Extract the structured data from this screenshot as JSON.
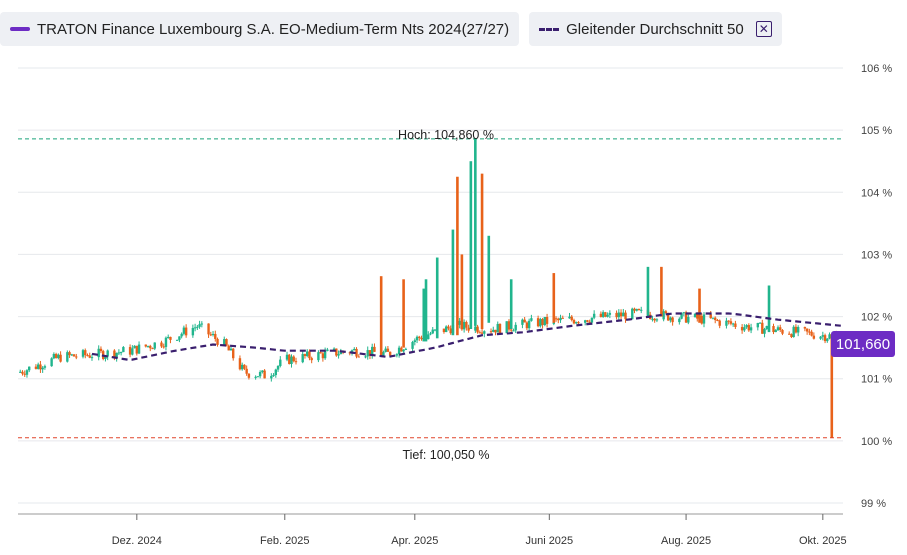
{
  "legend": {
    "series_label": "TRATON Finance Luxembourg S.A. EO-Medium-Term Nts 2024(27/27)",
    "ma_label": "Gleitender Durchschnitt 50",
    "close_glyph": "✕"
  },
  "colors": {
    "up": "#21b58d",
    "down": "#e8621a",
    "ma": "#3a1f6e",
    "accent": "#6d2cc4",
    "high_line": "#1aa37a",
    "low_line": "#e0452b",
    "grid": "#e6e8ec"
  },
  "annotations": {
    "high": "Hoch: 104,860 %",
    "low": "Tief: 100,050 %",
    "last": "101,660"
  },
  "chart_data": {
    "type": "candlestick",
    "title": "",
    "xlabel": "",
    "ylabel": "",
    "y_unit": "%",
    "ylim": [
      99,
      106
    ],
    "y_ticks": [
      {
        "v": 106,
        "label": "106 %"
      },
      {
        "v": 105,
        "label": "105 %"
      },
      {
        "v": 104,
        "label": "104 %"
      },
      {
        "v": 103,
        "label": "103 %"
      },
      {
        "v": 102,
        "label": "102 %"
      },
      {
        "v": 101,
        "label": "101 %"
      },
      {
        "v": 100,
        "label": "100 %"
      },
      {
        "v": 99,
        "label": "99 %"
      }
    ],
    "xlim": [
      "2024-10-06",
      "2025-10-09"
    ],
    "x_ticks": [
      {
        "date": "2024-11-28",
        "label": "Dez. 2024"
      },
      {
        "date": "2025-02-02",
        "label": "Feb. 2025"
      },
      {
        "date": "2025-04-01",
        "label": "Apr. 2025"
      },
      {
        "date": "2025-05-31",
        "label": "Juni 2025"
      },
      {
        "date": "2025-07-31",
        "label": "Aug. 2025"
      },
      {
        "date": "2025-09-30",
        "label": "Okt. 2025"
      }
    ],
    "high": 104.86,
    "low": 100.05,
    "last": 101.66,
    "grid": true,
    "legend_position": "top-left",
    "price_anchors": [
      [
        "2024-10-06",
        101.1
      ],
      [
        "2024-10-25",
        101.35
      ],
      [
        "2024-11-12",
        101.4
      ],
      [
        "2024-11-25",
        101.45
      ],
      [
        "2024-12-10",
        101.6
      ],
      [
        "2024-12-25",
        101.85
      ],
      [
        "2025-01-06",
        101.55
      ],
      [
        "2025-01-15",
        101.1
      ],
      [
        "2025-01-25",
        101.05
      ],
      [
        "2025-02-02",
        101.3
      ],
      [
        "2025-02-20",
        101.4
      ],
      [
        "2025-03-05",
        101.45
      ],
      [
        "2025-03-20",
        101.4
      ],
      [
        "2025-04-05",
        101.7
      ],
      [
        "2025-04-20",
        101.85
      ],
      [
        "2025-05-05",
        101.8
      ],
      [
        "2025-05-25",
        101.9
      ],
      [
        "2025-06-10",
        101.95
      ],
      [
        "2025-06-25",
        102.0
      ],
      [
        "2025-07-10",
        102.05
      ],
      [
        "2025-07-25",
        102.0
      ],
      [
        "2025-08-10",
        101.95
      ],
      [
        "2025-08-25",
        101.85
      ],
      [
        "2025-09-10",
        101.78
      ],
      [
        "2025-09-25",
        101.72
      ],
      [
        "2025-10-09",
        101.66
      ]
    ],
    "spikes": [
      {
        "date": "2025-03-17",
        "top": 102.65,
        "bottom": 101.4,
        "dir": "down"
      },
      {
        "date": "2025-03-27",
        "top": 102.6,
        "bottom": 101.5,
        "dir": "down"
      },
      {
        "date": "2025-04-05",
        "top": 102.45,
        "bottom": 101.6,
        "dir": "up"
      },
      {
        "date": "2025-04-06",
        "top": 102.6,
        "bottom": 101.6,
        "dir": "up"
      },
      {
        "date": "2025-04-11",
        "top": 102.95,
        "bottom": 101.65,
        "dir": "up"
      },
      {
        "date": "2025-04-18",
        "top": 103.4,
        "bottom": 101.7,
        "dir": "up"
      },
      {
        "date": "2025-04-20",
        "top": 104.25,
        "bottom": 101.7,
        "dir": "down"
      },
      {
        "date": "2025-04-22",
        "top": 103.0,
        "bottom": 101.8,
        "dir": "down"
      },
      {
        "date": "2025-04-26",
        "top": 104.5,
        "bottom": 101.8,
        "dir": "up"
      },
      {
        "date": "2025-04-28",
        "top": 104.86,
        "bottom": 101.85,
        "dir": "up"
      },
      {
        "date": "2025-05-01",
        "top": 104.3,
        "bottom": 101.8,
        "dir": "down"
      },
      {
        "date": "2025-05-04",
        "top": 103.3,
        "bottom": 101.9,
        "dir": "up"
      },
      {
        "date": "2025-05-14",
        "top": 102.6,
        "bottom": 101.8,
        "dir": "up"
      },
      {
        "date": "2025-06-02",
        "top": 102.7,
        "bottom": 101.9,
        "dir": "down"
      },
      {
        "date": "2025-07-14",
        "top": 102.8,
        "bottom": 102.0,
        "dir": "up"
      },
      {
        "date": "2025-07-20",
        "top": 102.8,
        "bottom": 102.0,
        "dir": "down"
      },
      {
        "date": "2025-08-06",
        "top": 102.45,
        "bottom": 101.9,
        "dir": "down"
      },
      {
        "date": "2025-09-06",
        "top": 102.5,
        "bottom": 101.75,
        "dir": "up"
      },
      {
        "date": "2025-10-04",
        "top": 101.72,
        "bottom": 100.05,
        "dir": "down"
      }
    ],
    "ma_anchors": [
      [
        "2024-11-08",
        101.4
      ],
      [
        "2024-11-25",
        101.3
      ],
      [
        "2024-12-15",
        101.45
      ],
      [
        "2025-01-01",
        101.55
      ],
      [
        "2025-01-20",
        101.5
      ],
      [
        "2025-02-02",
        101.45
      ],
      [
        "2025-02-25",
        101.45
      ],
      [
        "2025-03-20",
        101.35
      ],
      [
        "2025-04-10",
        101.5
      ],
      [
        "2025-05-01",
        101.7
      ],
      [
        "2025-05-20",
        101.75
      ],
      [
        "2025-06-10",
        101.85
      ],
      [
        "2025-07-05",
        101.95
      ],
      [
        "2025-07-25",
        102.05
      ],
      [
        "2025-08-20",
        102.05
      ],
      [
        "2025-09-10",
        101.95
      ],
      [
        "2025-10-09",
        101.85
      ]
    ]
  }
}
